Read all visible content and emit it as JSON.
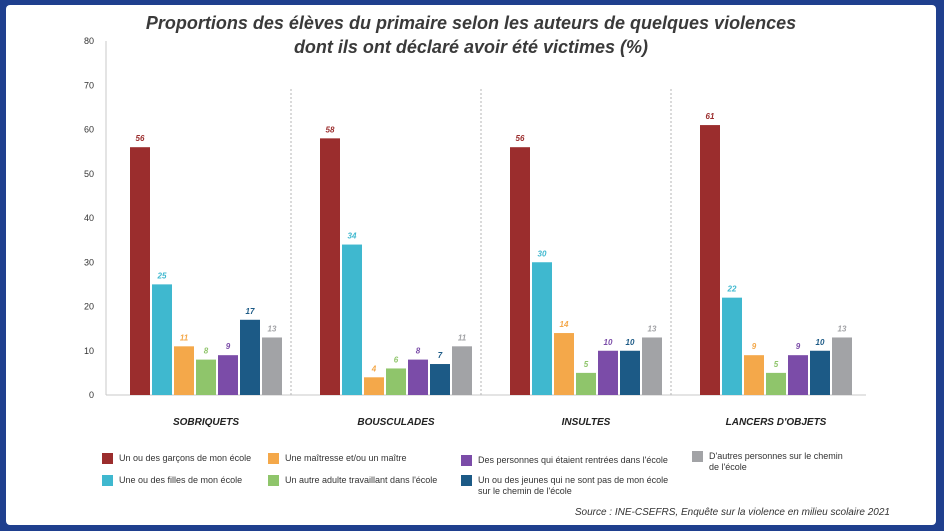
{
  "chart_data": {
    "type": "bar",
    "title_lines": [
      "Proportions des élèves du primaire selon les auteurs de quelques violences",
      "dont ils ont déclaré avoir été victimes (%)"
    ],
    "categories": [
      "SOBRIQUETS",
      "BOUSCULADES",
      "INSULTES",
      "LANCERS D'OBJETS"
    ],
    "ylim": [
      0,
      80
    ],
    "yticks": [
      0,
      10,
      20,
      30,
      40,
      50,
      60,
      70,
      80
    ],
    "xlabel": "",
    "ylabel": "",
    "series": [
      {
        "name": "Un ou des garçons de mon école",
        "color": "#9b2d2d",
        "values": [
          56,
          58,
          56,
          61
        ]
      },
      {
        "name": "Une ou des filles de mon école",
        "color": "#3fb8cf",
        "values": [
          25,
          34,
          30,
          22
        ]
      },
      {
        "name": "Une maîtresse et/ou un maître",
        "color": "#f4a84a",
        "values": [
          11,
          4,
          14,
          9
        ]
      },
      {
        "name": "Un autre adulte travaillant dans l'école",
        "color": "#8fc56b",
        "values": [
          8,
          6,
          5,
          5
        ]
      },
      {
        "name": "Des personnes qui étaient rentrées dans l'école",
        "color": "#7b4ca8",
        "values": [
          9,
          8,
          10,
          9
        ]
      },
      {
        "name": "Un ou des jeunes qui ne sont pas de mon école sur le chemin de l'école",
        "color": "#1c5a86",
        "values": [
          17,
          7,
          10,
          10
        ]
      },
      {
        "name": "D'autres personnes sur le chemin de l'école",
        "color": "#a2a3a6",
        "values": [
          13,
          11,
          13,
          13
        ]
      }
    ],
    "source": "Source : INE-CSEFRS, Enquête sur la violence en milieu scolaire 2021"
  }
}
